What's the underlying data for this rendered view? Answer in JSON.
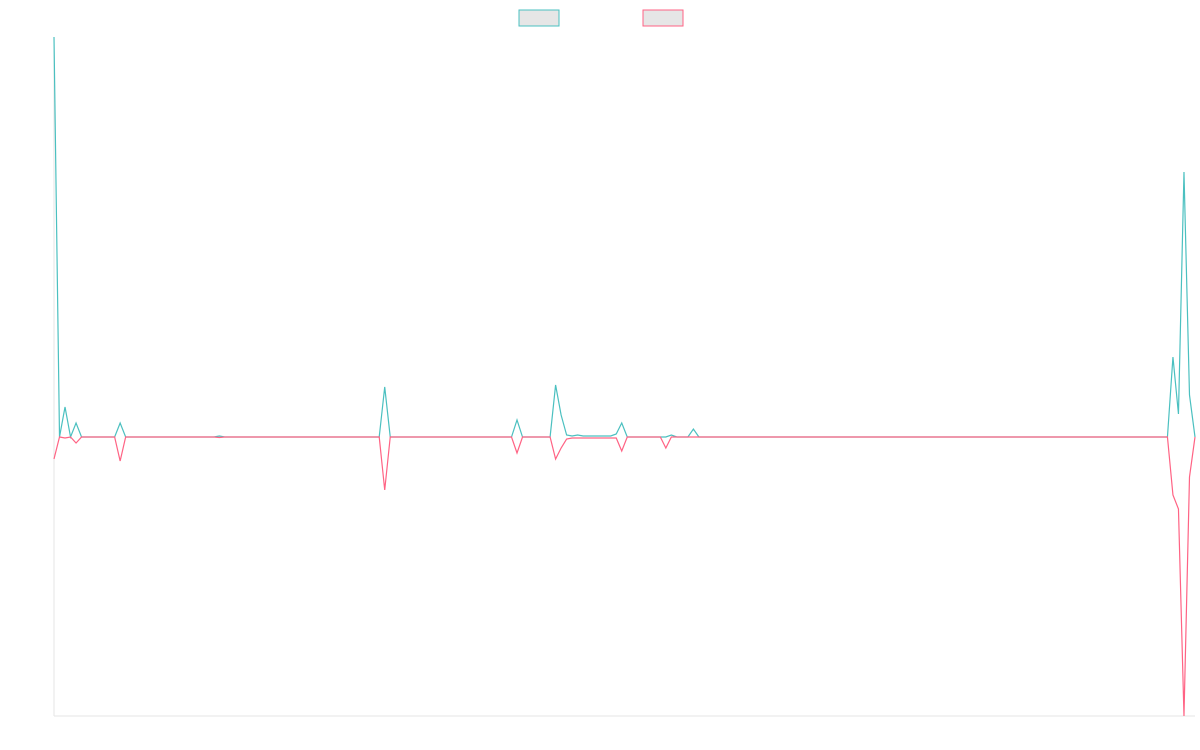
{
  "chart_data": {
    "type": "line",
    "ylim": [
      -27.9,
      40
    ],
    "legend": "top",
    "series": [
      {
        "color": "#4bc0c0",
        "values": [
          40,
          0,
          3,
          0,
          1.4,
          0,
          0,
          0,
          0,
          0,
          0,
          0,
          1.4,
          0,
          0,
          0,
          0,
          0,
          0,
          0,
          0,
          0,
          0,
          0,
          0,
          0,
          0,
          0,
          0,
          0,
          0.1,
          0,
          0,
          0,
          0,
          0,
          0,
          0,
          0,
          0,
          0,
          0,
          0,
          0,
          0,
          0,
          0,
          0,
          0,
          0,
          0,
          0,
          0,
          0,
          0,
          0,
          0,
          0,
          0,
          0,
          5,
          0,
          0,
          0,
          0,
          0,
          0,
          0,
          0,
          0,
          0,
          0,
          0,
          0,
          0,
          0,
          0,
          0,
          0,
          0,
          0,
          0,
          0,
          0,
          1.7,
          0,
          0,
          0,
          0,
          0,
          0,
          5.2,
          2.2,
          0.2,
          0.1,
          0.2,
          0.1,
          0.1,
          0.1,
          0.1,
          0.1,
          0.1,
          0.3,
          1.4,
          0,
          0,
          0,
          0,
          0,
          0,
          0,
          0,
          0.2,
          0,
          0,
          0,
          0.8,
          0,
          0,
          0,
          0,
          0,
          0,
          0,
          0,
          0,
          0,
          0,
          0,
          0,
          0,
          0,
          0,
          0,
          0,
          0,
          0,
          0,
          0,
          0,
          0,
          0,
          0,
          0,
          0,
          0,
          0,
          0,
          0,
          0,
          0,
          0,
          0,
          0,
          0,
          0,
          0,
          0,
          0,
          0,
          0,
          0,
          0,
          0,
          0,
          0,
          0,
          0,
          0,
          0,
          0,
          0,
          0,
          0,
          0,
          0,
          0,
          0,
          0,
          0,
          0,
          0,
          0,
          0,
          0,
          0,
          0,
          0,
          0,
          0,
          0,
          0,
          0,
          0,
          0,
          0,
          0,
          0,
          0,
          0,
          0,
          0,
          0,
          8,
          2.3,
          26.5,
          4.2,
          0
        ]
      },
      {
        "color": "#ff6384",
        "values": [
          -2.2,
          0,
          -0.1,
          0,
          -0.6,
          0,
          0,
          0,
          0,
          0,
          0,
          0,
          -2.4,
          0,
          0,
          0,
          0,
          0,
          0,
          0,
          0,
          0,
          0,
          0,
          0,
          0,
          0,
          0,
          0,
          0,
          -0.05,
          0,
          0,
          0,
          0,
          0,
          0,
          0,
          0,
          0,
          0,
          0,
          0,
          0,
          0,
          0,
          0,
          0,
          0,
          0,
          0,
          0,
          0,
          0,
          0,
          0,
          0,
          0,
          0,
          0,
          -5.3,
          0,
          0,
          0,
          0,
          0,
          0,
          0,
          0,
          0,
          0,
          0,
          0,
          0,
          0,
          0,
          0,
          0,
          0,
          0,
          0,
          0,
          0,
          0,
          -1.6,
          0,
          0,
          0,
          0,
          0,
          0,
          -2.2,
          -1.1,
          -0.2,
          -0.1,
          -0.1,
          -0.1,
          -0.1,
          -0.1,
          -0.1,
          -0.1,
          -0.1,
          -0.1,
          -1.4,
          0,
          0,
          0,
          0,
          0,
          0,
          0,
          -1.1,
          0,
          0,
          0,
          0,
          0,
          0,
          0,
          0,
          0,
          0,
          0,
          0,
          0,
          0,
          0,
          0,
          0,
          0,
          0,
          0,
          0,
          0,
          0,
          0,
          0,
          0,
          0,
          0,
          0,
          0,
          0,
          0,
          0,
          0,
          0,
          0,
          0,
          0,
          0,
          0,
          0,
          0,
          0,
          0,
          0,
          0,
          0,
          0,
          0,
          0,
          0,
          0,
          0,
          0,
          0,
          0,
          0,
          0,
          0,
          0,
          0,
          0,
          0,
          0,
          0,
          0,
          0,
          0,
          0,
          0,
          0,
          0,
          0,
          0,
          0,
          0,
          0,
          0,
          0,
          0,
          0,
          0,
          0,
          0,
          0,
          0,
          0,
          0,
          0,
          0,
          0,
          -5.8,
          -7.2,
          -27.9,
          -4,
          0
        ]
      }
    ]
  }
}
